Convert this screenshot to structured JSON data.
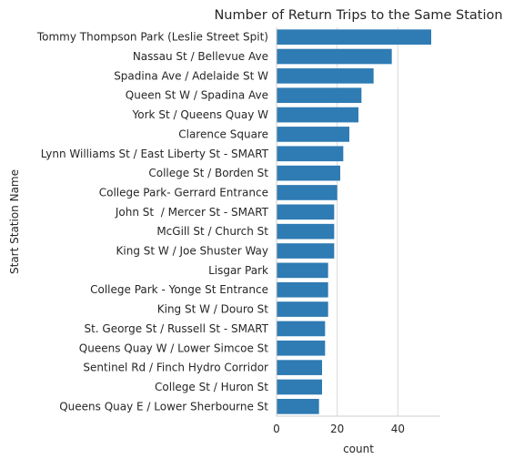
{
  "chart_data": {
    "type": "bar",
    "orientation": "horizontal",
    "title": "Number of Return Trips to the Same Station",
    "xlabel": "count",
    "ylabel": "Start Station Name",
    "xlim": [
      0,
      54
    ],
    "xticks": [
      0,
      20,
      40
    ],
    "grid": "vertical",
    "bar_color": "#2f7bb3",
    "categories": [
      "Tommy Thompson Park (Leslie Street Spit)",
      "Nassau St / Bellevue Ave",
      "Spadina Ave / Adelaide St W",
      "Queen St W / Spadina Ave",
      "York St / Queens Quay W",
      "Clarence Square",
      "Lynn Williams St / East Liberty St - SMART",
      "College St / Borden St",
      "College Park- Gerrard Entrance",
      "John St  / Mercer St - SMART",
      "McGill St / Church St",
      "King St W / Joe Shuster Way",
      "Lisgar Park",
      "College Park - Yonge St Entrance",
      "King St W / Douro St",
      "St. George St / Russell St - SMART",
      "Queens Quay W / Lower Simcoe St",
      "Sentinel Rd / Finch Hydro Corridor",
      "College St / Huron St",
      "Queens Quay E / Lower Sherbourne St"
    ],
    "values": [
      51,
      38,
      32,
      28,
      27,
      24,
      22,
      21,
      20,
      19,
      19,
      19,
      17,
      17,
      17,
      16,
      16,
      15,
      15,
      14
    ]
  }
}
